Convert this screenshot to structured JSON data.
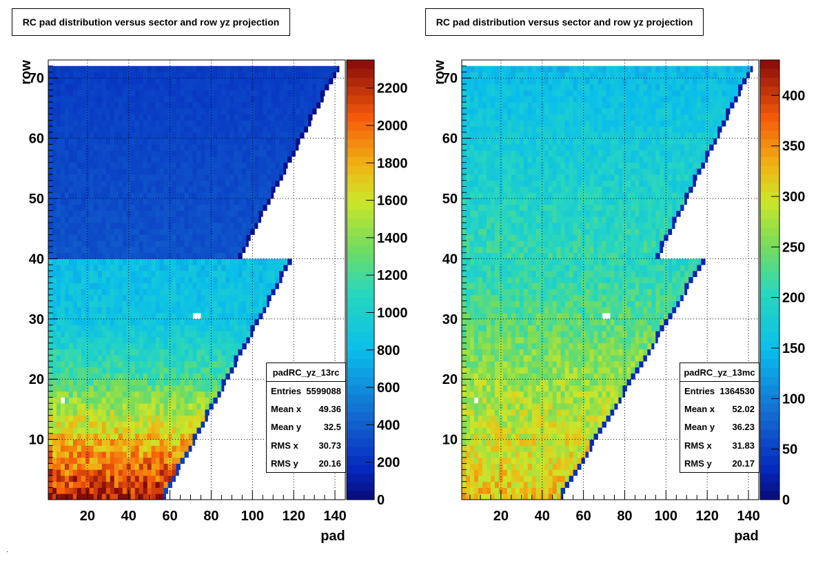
{
  "chart_data": [
    {
      "type": "heatmap",
      "title": "RC pad distribution versus sector and row yz projection",
      "xlabel": "pad",
      "ylabel": "row",
      "xlim": [
        1,
        145
      ],
      "ylim": [
        0,
        73
      ],
      "xticks": [
        20,
        40,
        60,
        80,
        100,
        120,
        140
      ],
      "yticks": [
        10,
        20,
        30,
        40,
        50,
        60,
        70
      ],
      "zlim": [
        0,
        2350
      ],
      "zticks": [
        0,
        200,
        400,
        600,
        800,
        1000,
        1200,
        1400,
        1600,
        1800,
        2000,
        2200
      ],
      "grid": true,
      "colormap": "rainbow",
      "inner_sector": {
        "rows": [
          1,
          40
        ],
        "pad_max_row1": 58,
        "pad_max_row40": 119
      },
      "outer_sector": {
        "rows": [
          41,
          72
        ],
        "pad_max_row41": 95,
        "pad_max_row72": 142
      },
      "intensity_profile": {
        "row1": 2250,
        "row20": 1250,
        "row30": 880,
        "row40": 820,
        "row41": 350,
        "row72": 250
      },
      "dead_regions": [
        {
          "row": 17,
          "pads": [
            7,
            9
          ]
        },
        {
          "row": 31,
          "pads": [
            72,
            74
          ]
        }
      ],
      "stats": {
        "name": "padRC_yz_13rc",
        "entries_label": "Entries",
        "entries": "5599088",
        "meanx_label": "Mean x",
        "meanx": "49.36",
        "meany_label": "Mean y",
        "meany": "32.5",
        "rmsx_label": "RMS x",
        "rmsx": "30.73",
        "rmsy_label": "RMS y",
        "rmsy": "20.16"
      }
    },
    {
      "type": "heatmap",
      "title": "RC pad distribution versus sector and row yz projection",
      "xlabel": "pad",
      "ylabel": "row",
      "xlim": [
        1,
        145
      ],
      "ylim": [
        0,
        73
      ],
      "xticks": [
        20,
        40,
        60,
        80,
        100,
        120,
        140
      ],
      "yticks": [
        10,
        20,
        30,
        40,
        50,
        60,
        70
      ],
      "zlim": [
        0,
        435
      ],
      "zticks": [
        0,
        50,
        100,
        150,
        200,
        250,
        300,
        350,
        400
      ],
      "grid": true,
      "colormap": "rainbow",
      "inner_sector": {
        "rows": [
          1,
          40
        ],
        "pad_max_row1": 50,
        "pad_max_row40": 119
      },
      "outer_sector": {
        "rows": [
          41,
          72
        ],
        "pad_max_row41": 97,
        "pad_max_row72": 142
      },
      "intensity_profile": {
        "row1": 320,
        "row20": 270,
        "row30": 235,
        "row40": 200,
        "row41": 210,
        "row72": 150
      },
      "dead_regions": [
        {
          "row": 17,
          "pads": [
            7,
            9
          ]
        },
        {
          "row": 31,
          "pads": [
            69,
            72
          ]
        }
      ],
      "stats": {
        "name": "padRC_yz_13mc",
        "entries_label": "Entries",
        "entries": "1364530",
        "meanx_label": "Mean x",
        "meanx": "52.02",
        "meany_label": "Mean y",
        "meany": "36.23",
        "rmsx_label": "RMS x",
        "rmsx": "31.83",
        "rmsy_label": "RMS y",
        "rmsy": "20.17"
      }
    }
  ]
}
